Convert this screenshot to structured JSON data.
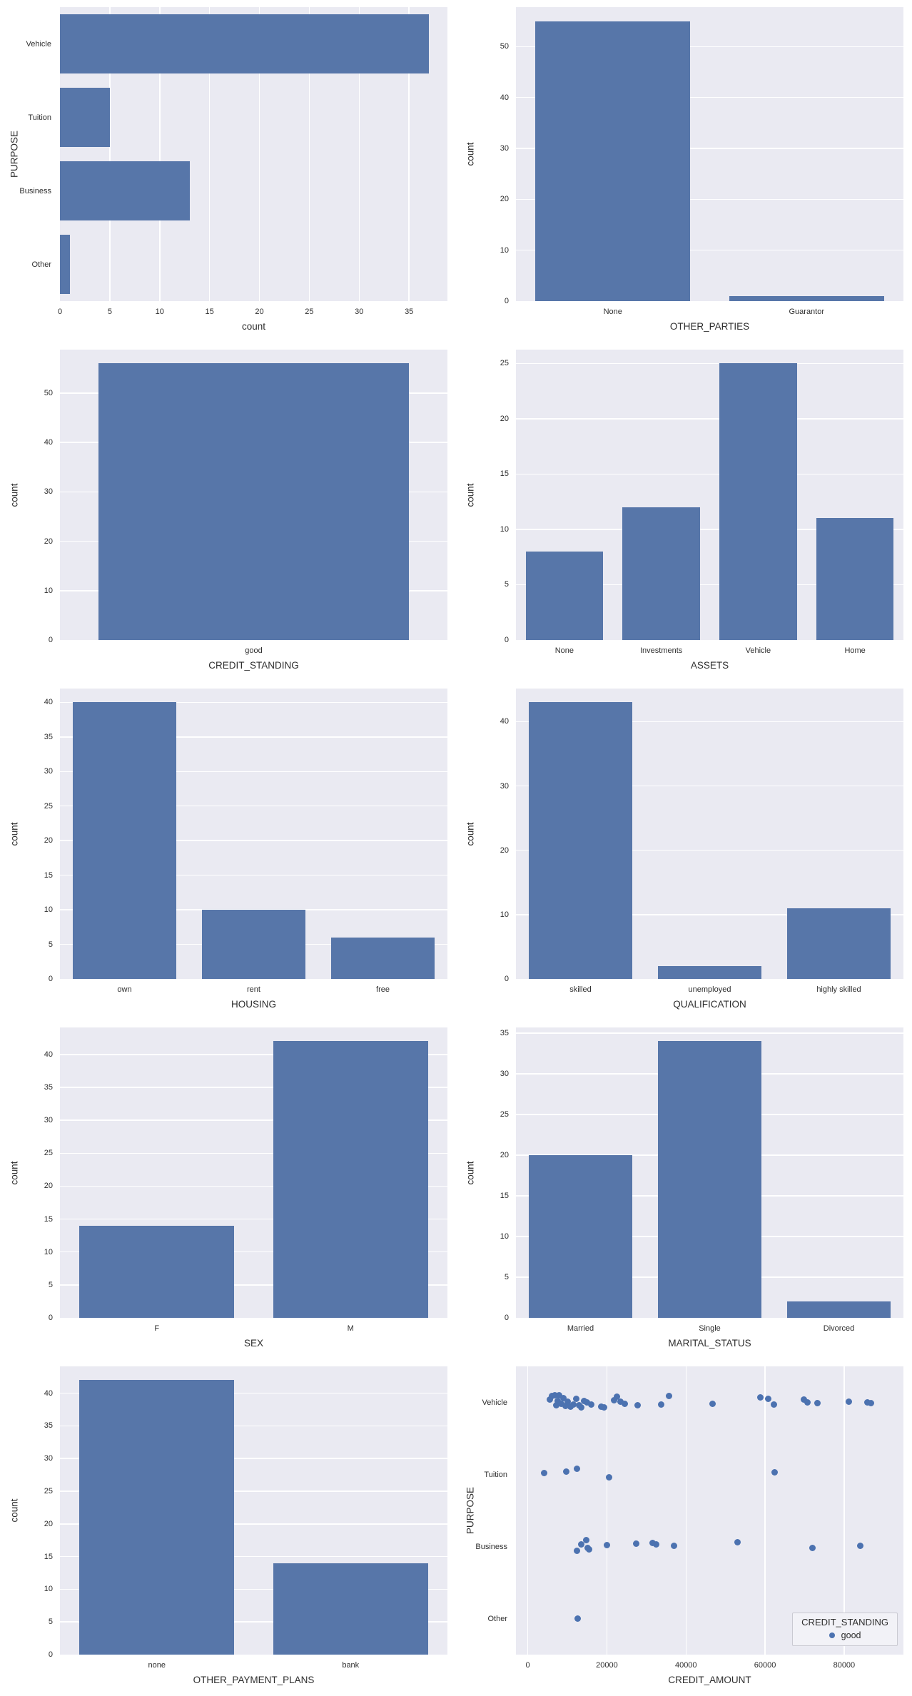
{
  "figure": {
    "background": "#ffffff",
    "plot_background": "#eaeaf2",
    "grid_color": "#ffffff",
    "bar_color": "#5776a9",
    "point_color": "#4c72b0",
    "text_color": "#2e2e2e"
  },
  "chart_data": [
    {
      "id": "purpose",
      "type": "barh",
      "grid": true,
      "xlabel": "count",
      "ylabel": "PURPOSE",
      "categories": [
        "Vehicle",
        "Tuition",
        "Business",
        "Other"
      ],
      "values": [
        37,
        5,
        13,
        1
      ],
      "xticks": [
        0,
        5,
        10,
        15,
        20,
        25,
        30,
        35
      ],
      "xlim": [
        0,
        38.85
      ]
    },
    {
      "id": "other-parties",
      "type": "bar",
      "grid": true,
      "xlabel": "OTHER_PARTIES",
      "ylabel": "count",
      "categories": [
        "None",
        "Guarantor"
      ],
      "values": [
        55,
        1
      ],
      "yticks": [
        0,
        10,
        20,
        30,
        40,
        50
      ],
      "ylim": [
        0,
        57.75
      ]
    },
    {
      "id": "credit-standing",
      "type": "bar",
      "grid": true,
      "xlabel": "CREDIT_STANDING",
      "ylabel": "count",
      "categories": [
        "good"
      ],
      "values": [
        56
      ],
      "yticks": [
        0,
        10,
        20,
        30,
        40,
        50
      ],
      "ylim": [
        0,
        58.8
      ]
    },
    {
      "id": "assets",
      "type": "bar",
      "grid": true,
      "xlabel": "ASSETS",
      "ylabel": "count",
      "categories": [
        "None",
        "Investments",
        "Vehicle",
        "Home"
      ],
      "values": [
        8,
        12,
        25,
        11
      ],
      "yticks": [
        0,
        5,
        10,
        15,
        20,
        25
      ],
      "ylim": [
        0,
        26.25
      ]
    },
    {
      "id": "housing",
      "type": "bar",
      "grid": true,
      "xlabel": "HOUSING",
      "ylabel": "count",
      "categories": [
        "own",
        "rent",
        "free"
      ],
      "values": [
        40,
        10,
        6
      ],
      "yticks": [
        0,
        5,
        10,
        15,
        20,
        25,
        30,
        35,
        40
      ],
      "ylim": [
        0,
        42
      ]
    },
    {
      "id": "qualification",
      "type": "bar",
      "grid": true,
      "xlabel": "QUALIFICATION",
      "ylabel": "count",
      "categories": [
        "skilled",
        "unemployed",
        "highly skilled"
      ],
      "values": [
        43,
        2,
        11
      ],
      "yticks": [
        0,
        10,
        20,
        30,
        40
      ],
      "ylim": [
        0,
        45.15
      ]
    },
    {
      "id": "sex",
      "type": "bar",
      "grid": true,
      "xlabel": "SEX",
      "ylabel": "count",
      "categories": [
        "F",
        "M"
      ],
      "values": [
        14,
        42
      ],
      "yticks": [
        0,
        5,
        10,
        15,
        20,
        25,
        30,
        35,
        40
      ],
      "ylim": [
        0,
        44.1
      ]
    },
    {
      "id": "marital-status",
      "type": "bar",
      "grid": true,
      "xlabel": "MARITAL_STATUS",
      "ylabel": "count",
      "categories": [
        "Married",
        "Single",
        "Divorced"
      ],
      "values": [
        20,
        34,
        2
      ],
      "yticks": [
        0,
        5,
        10,
        15,
        20,
        25,
        30,
        35
      ],
      "ylim": [
        0,
        35.7
      ]
    },
    {
      "id": "other-payment-plans",
      "type": "bar",
      "grid": true,
      "xlabel": "OTHER_PAYMENT_PLANS",
      "ylabel": "count",
      "categories": [
        "none",
        "bank"
      ],
      "values": [
        42,
        14
      ],
      "yticks": [
        0,
        5,
        10,
        15,
        20,
        25,
        30,
        35,
        40
      ],
      "ylim": [
        0,
        44.1
      ]
    },
    {
      "id": "credit-amount-by-purpose",
      "type": "scatter",
      "grid": true,
      "xlabel": "CREDIT_AMOUNT",
      "ylabel": "PURPOSE",
      "categories": [
        "Vehicle",
        "Tuition",
        "Business",
        "Other"
      ],
      "xticks": [
        0,
        20000,
        40000,
        60000,
        80000
      ],
      "xlim": [
        -3000,
        95000
      ],
      "legend": {
        "title": "CREDIT_STANDING",
        "position": "lower right",
        "items": [
          {
            "label": "good",
            "color": "#4c72b0"
          }
        ]
      },
      "series": [
        {
          "name": "good",
          "groups": [
            {
              "category": "Vehicle",
              "x": [
                5500,
                6200,
                6800,
                7200,
                7600,
                8000,
                8500,
                9000,
                9500,
                10000,
                10800,
                11500,
                12200,
                13000,
                13600,
                14200,
                15000,
                16000,
                18500,
                19200,
                21800,
                22500,
                23400,
                24500,
                27800,
                33800,
                35800,
                46800,
                58800,
                60800,
                62300,
                69800,
                70800,
                73200,
                81200,
                85800,
                86800
              ],
              "jitter": [
                -0.04,
                -0.09,
                -0.1,
                0.04,
                -0.02,
                -0.1,
                0.02,
                -0.06,
                0.05,
                -0.01,
                0.06,
                0.03,
                -0.05,
                0.04,
                0.07,
                -0.02,
                0.0,
                0.03,
                0.06,
                0.07,
                -0.03,
                -0.08,
                -0.01,
                0.02,
                0.04,
                0.03,
                -0.09,
                0.02,
                -0.07,
                -0.05,
                0.03,
                -0.04,
                0.0,
                0.01,
                -0.01,
                0.0,
                0.01
              ]
            },
            {
              "category": "Tuition",
              "x": [
                4200,
                9800,
                12500,
                20500,
                62500
              ],
              "jitter": [
                -0.02,
                -0.04,
                -0.08,
                0.04,
                -0.03
              ]
            },
            {
              "category": "Business",
              "x": [
                12500,
                13500,
                14800,
                15100,
                15500,
                20000,
                27500,
                31500,
                32500,
                37000,
                53000,
                72000,
                84000
              ],
              "jitter": [
                0.06,
                -0.03,
                -0.09,
                0.02,
                0.04,
                -0.02,
                -0.04,
                -0.05,
                -0.03,
                -0.01,
                -0.06,
                0.02,
                -0.01
              ]
            },
            {
              "category": "Other",
              "x": [
                12600
              ],
              "jitter": [
                0.0
              ]
            }
          ]
        }
      ]
    }
  ]
}
